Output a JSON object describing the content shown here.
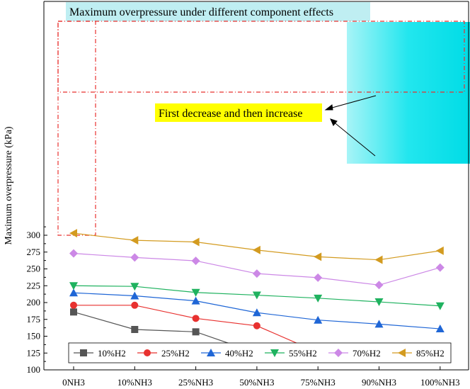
{
  "chart_data": {
    "type": "line",
    "title": "Maximum overpressure under different component effects",
    "ylabel": "Maximum overpressure (kPa)",
    "xlabel": "",
    "categories": [
      "0NH3",
      "10%NH3",
      "25%NH3",
      "50%NH3",
      "75%NH3",
      "90%NH3",
      "100%NH3"
    ],
    "ylim": [
      100,
      315
    ],
    "yticks": [
      100,
      125,
      150,
      175,
      200,
      225,
      250,
      275,
      300
    ],
    "grid": false,
    "legend_position": "bottom",
    "series": [
      {
        "name": "10%H2",
        "color": "#555555",
        "marker": "square",
        "values": [
          186,
          160,
          156.5,
          125,
          null,
          null,
          null
        ]
      },
      {
        "name": "25%H2",
        "color": "#e8312f",
        "marker": "circle",
        "values": [
          196,
          196,
          176.5,
          165.5,
          126,
          121,
          null
        ]
      },
      {
        "name": "40%H2",
        "color": "#1f66d6",
        "marker": "triangle-up",
        "values": [
          214.5,
          210,
          202.5,
          185,
          174,
          168,
          161
        ]
      },
      {
        "name": "55%H2",
        "color": "#1fb25f",
        "marker": "triangle-down",
        "values": [
          225,
          224,
          215,
          211,
          206.5,
          201,
          195
        ]
      },
      {
        "name": "70%H2",
        "color": "#cc88e6",
        "marker": "diamond",
        "values": [
          273,
          267,
          262,
          243,
          237,
          226,
          252
        ]
      },
      {
        "name": "85%H2",
        "color": "#d39b20",
        "marker": "triangle-left",
        "values": [
          303,
          292.5,
          290,
          278,
          268,
          263.5,
          277
        ]
      }
    ],
    "annotations": [
      {
        "text": "First decrease and then increase",
        "highlight_color": "#ffff00"
      }
    ],
    "highlight_colors": {
      "title_background": "#bfeef2",
      "cyan_region": "#00e5ee",
      "dashed_boxes": "#e8312f"
    }
  }
}
